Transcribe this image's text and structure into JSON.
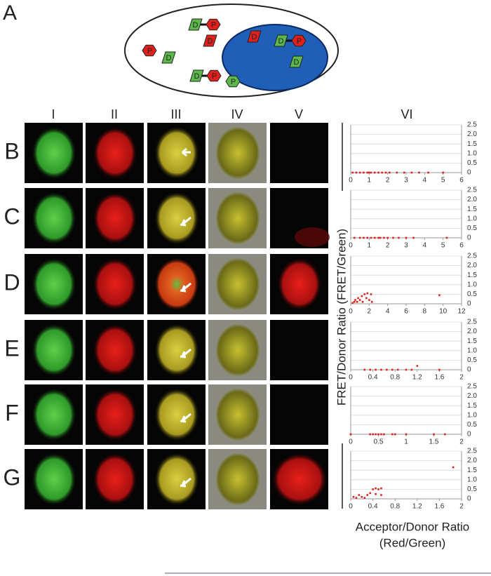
{
  "panel_label": "A",
  "diagram": {
    "molecules": [
      "D",
      "P",
      "D",
      "P",
      "D",
      "D",
      "P",
      "P",
      "D",
      "D",
      "P",
      "D"
    ]
  },
  "columns": [
    "I",
    "II",
    "III",
    "IV",
    "V",
    "VI"
  ],
  "rows": [
    "B",
    "C",
    "D",
    "E",
    "F",
    "G"
  ],
  "y_axis_label": "FRET/Donor Ratio (FRET/Green)",
  "x_axis_label": [
    "Acceptor/Donor Ratio",
    "(Red/Green)"
  ],
  "chart_data": [
    {
      "type": "scatter",
      "color": "#e0201b",
      "grid": true,
      "x": [
        0.1,
        0.3,
        0.5,
        0.7,
        0.9,
        1.0,
        1.1,
        1.3,
        1.5,
        1.7,
        1.9,
        2.1,
        2.5,
        2.9,
        3.3,
        3.7,
        4.2,
        5.0
      ],
      "y": [
        0,
        0,
        0,
        0,
        0,
        0,
        0,
        0,
        0,
        0,
        0,
        0,
        0,
        0,
        0,
        0,
        0,
        0
      ],
      "xlim": [
        0,
        6
      ],
      "xticks": [
        0,
        1,
        2,
        3,
        4,
        5,
        6
      ],
      "ylim": [
        0,
        2.5
      ],
      "yticks": [
        0,
        0.5,
        {
          "value": 1,
          "label": "1.0"
        },
        1.5,
        {
          "value": 2,
          "label": "2.0"
        },
        2.5
      ]
    },
    {
      "type": "scatter",
      "color": "#e0201b",
      "grid": true,
      "x": [
        0.2,
        0.5,
        0.7,
        0.9,
        1.1,
        1.3,
        1.5,
        1.6,
        1.8,
        2.0,
        2.3,
        2.6,
        3.0,
        3.4,
        5.2
      ],
      "y": [
        0,
        0,
        0,
        0,
        0,
        0,
        0,
        0,
        0,
        0,
        0,
        0,
        0,
        0,
        0
      ],
      "xlim": [
        0,
        6
      ],
      "xticks": [
        0,
        1,
        2,
        3,
        4,
        5,
        6
      ],
      "ylim": [
        0,
        2.5
      ],
      "yticks": [
        0,
        0.5,
        {
          "value": 1,
          "label": "1.0"
        },
        1.5,
        {
          "value": 2,
          "label": "2.0"
        },
        2.5
      ]
    },
    {
      "type": "scatter",
      "color": "#e0201b",
      "grid": true,
      "x": [
        0.2,
        0.4,
        0.5,
        0.7,
        0.8,
        1.0,
        1.2,
        1.3,
        1.5,
        1.7,
        1.8,
        2.0,
        2.2,
        2.3,
        9.6
      ],
      "y": [
        0.05,
        0.1,
        0.2,
        0.1,
        0.3,
        0.2,
        0.4,
        0.1,
        0.5,
        0.3,
        0.55,
        0.2,
        0.5,
        0.1,
        0.45
      ],
      "xlim": [
        0,
        12
      ],
      "xticks": [
        0,
        2,
        4,
        6,
        8,
        10,
        12
      ],
      "ylim": [
        0,
        2.5
      ],
      "yticks": [
        0,
        0.5,
        {
          "value": 1,
          "label": "1.0"
        },
        1.5,
        {
          "value": 2,
          "label": "2.0"
        },
        2.5
      ]
    },
    {
      "type": "scatter",
      "color": "#e0201b",
      "grid": true,
      "x": [
        0.25,
        0.35,
        0.45,
        0.55,
        0.65,
        0.75,
        0.85,
        1.0,
        1.1,
        1.6,
        1.2
      ],
      "y": [
        0,
        0,
        0,
        0,
        0,
        0,
        0,
        0,
        0,
        0,
        0.2
      ],
      "xlim": [
        0,
        2
      ],
      "xticks": [
        0,
        0.4,
        0.8,
        1.2,
        1.6,
        2
      ],
      "ylim": [
        0,
        2.5
      ],
      "yticks": [
        0,
        0.5,
        {
          "value": 1,
          "label": "1.0"
        },
        1.5,
        {
          "value": 2,
          "label": "2.0"
        },
        2.5
      ]
    },
    {
      "type": "scatter",
      "color": "#e0201b",
      "grid": true,
      "x": [
        0,
        0.35,
        0.4,
        0.45,
        0.5,
        0.55,
        0.6,
        0.75,
        0.8,
        1.0,
        1.5,
        1.7
      ],
      "y": [
        0,
        0,
        0,
        0,
        0,
        0,
        0,
        0,
        0,
        0,
        0,
        0
      ],
      "xlim": [
        0,
        2
      ],
      "xticks": [
        0,
        0.5,
        1,
        1.5,
        2
      ],
      "ylim": [
        0,
        2.5
      ],
      "yticks": [
        0,
        0.5,
        {
          "value": 1,
          "label": "1.0"
        },
        1.5,
        {
          "value": 2,
          "label": "2.0"
        },
        2.5
      ]
    },
    {
      "type": "scatter",
      "color": "#e0201b",
      "grid": true,
      "x": [
        0.05,
        0.1,
        0.15,
        0.2,
        0.25,
        0.3,
        0.35,
        0.4,
        0.45,
        0.5,
        0.55,
        0.55,
        0.45,
        1.85
      ],
      "y": [
        0.1,
        0.05,
        0.2,
        0.1,
        0.05,
        0.2,
        0.3,
        0.5,
        0.55,
        0.5,
        0.55,
        0.2,
        0.25,
        1.65
      ],
      "xlim": [
        0,
        2
      ],
      "xticks": [
        0,
        0.4,
        0.8,
        1.2,
        1.6,
        2
      ],
      "ylim": [
        0,
        2.5
      ],
      "yticks": [
        0,
        0.5,
        {
          "value": 1,
          "label": "1.0"
        },
        1.5,
        {
          "value": 2,
          "label": "2.0"
        },
        2.5
      ]
    }
  ]
}
